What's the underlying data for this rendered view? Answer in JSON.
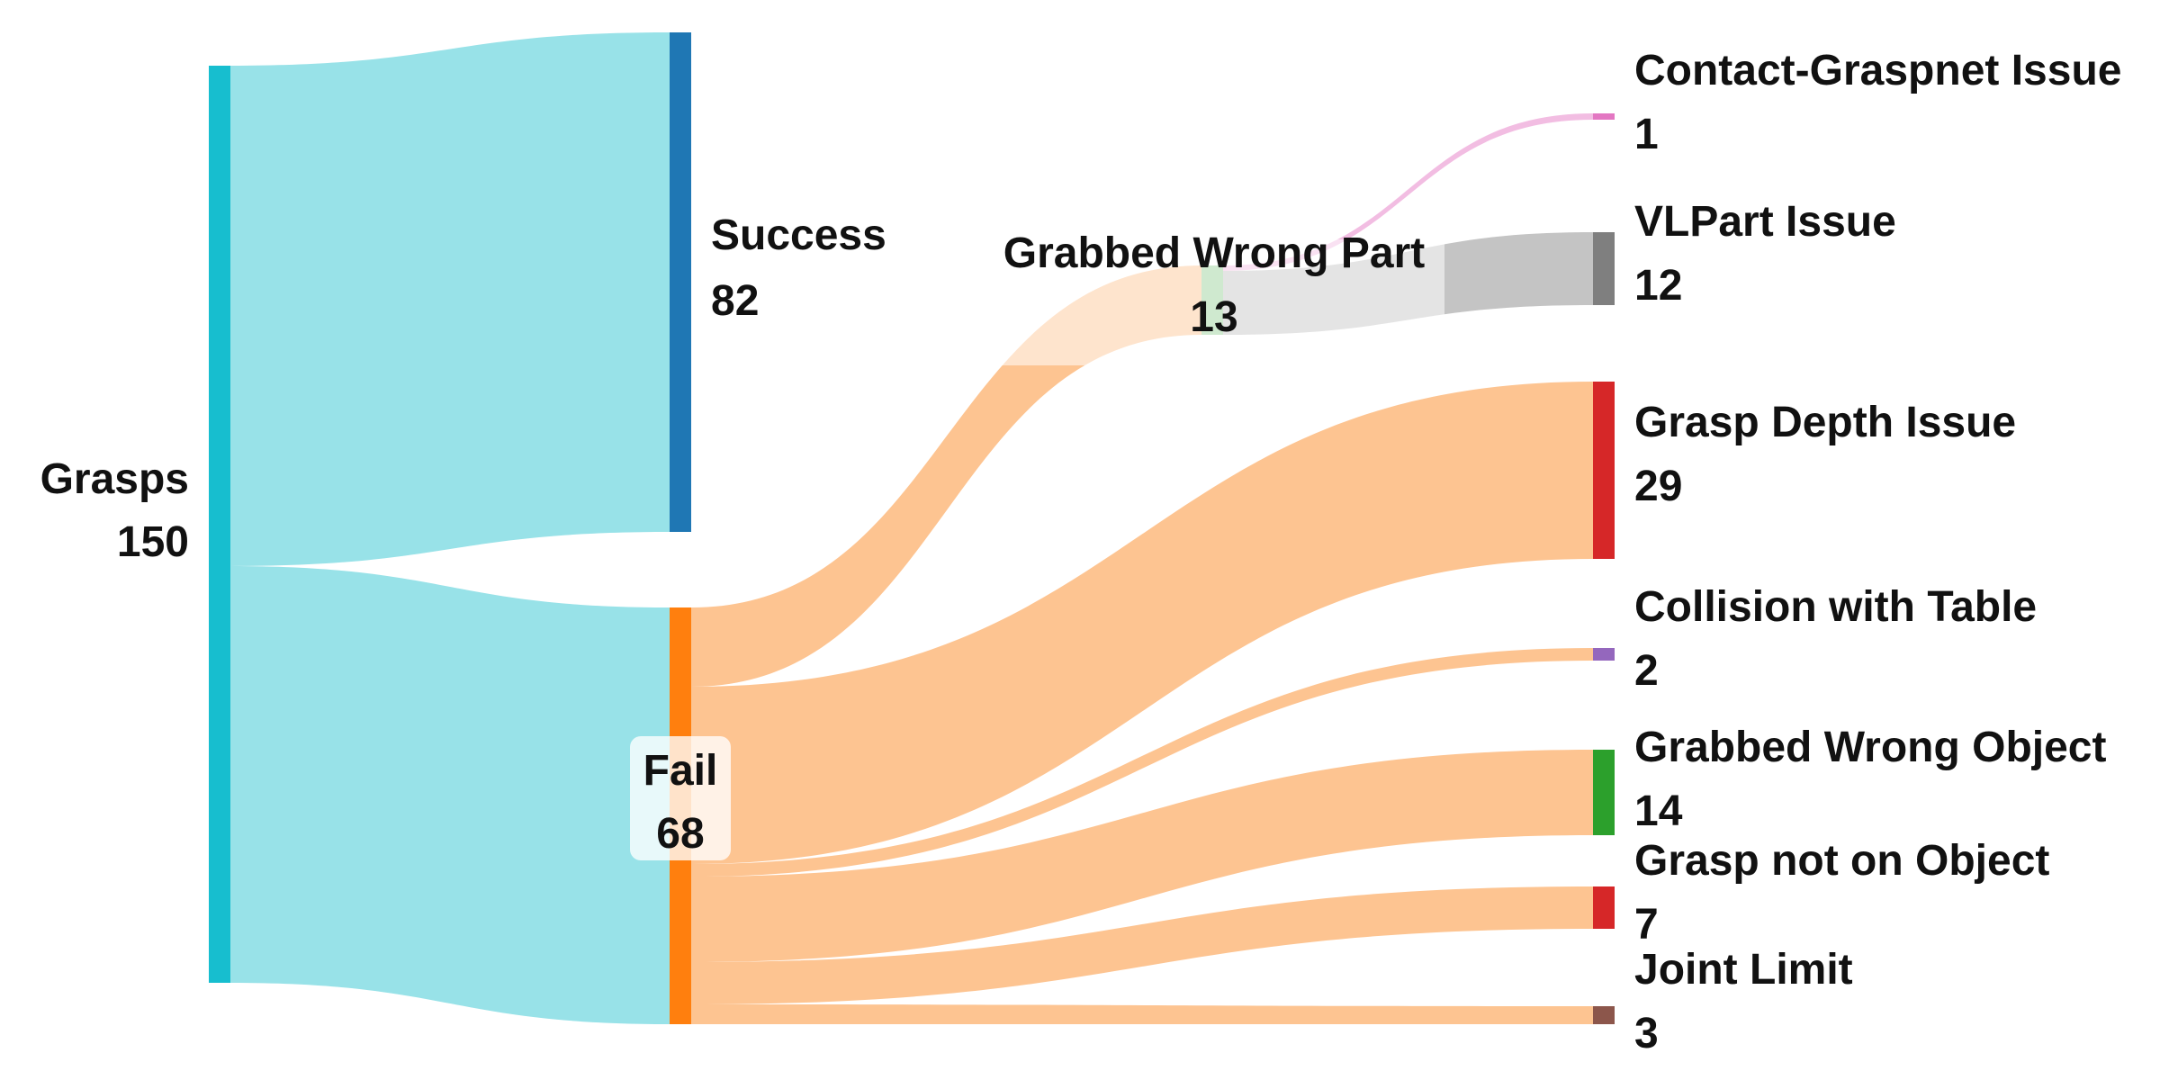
{
  "diagram": {
    "type": "sankey",
    "nodes": [
      {
        "id": "grasps",
        "name": "Grasps",
        "value": "150",
        "color": "#17becf"
      },
      {
        "id": "success",
        "name": "Success",
        "value": "82",
        "color": "#1f77b4"
      },
      {
        "id": "fail",
        "name": "Fail",
        "value": "68",
        "color": "#ff7f0e"
      },
      {
        "id": "wrong-part",
        "name": "Grabbed Wrong Part",
        "value": "13",
        "color": "#cfe9cf"
      },
      {
        "id": "contact-graspnet",
        "name": "Contact-Graspnet Issue",
        "value": "1",
        "color": "#e377c2"
      },
      {
        "id": "vlpart",
        "name": "VLPart Issue",
        "value": "12",
        "color": "#7f7f7f"
      },
      {
        "id": "grasp-depth",
        "name": "Grasp Depth Issue",
        "value": "29",
        "color": "#d62728"
      },
      {
        "id": "collision-table",
        "name": "Collision with Table",
        "value": "2",
        "color": "#9467bd"
      },
      {
        "id": "wrong-object",
        "name": "Grabbed Wrong Object",
        "value": "14",
        "color": "#2ca02c"
      },
      {
        "id": "not-on-object",
        "name": "Grasp not on Object",
        "value": "7",
        "color": "#d62728"
      },
      {
        "id": "joint-limit",
        "name": "Joint Limit",
        "value": "3",
        "color": "#8c564b"
      }
    ],
    "links": [
      {
        "source": "grasps",
        "target": "success",
        "value": 82,
        "color": "#98e2e8"
      },
      {
        "source": "grasps",
        "target": "fail",
        "value": 68,
        "color": "#98e2e8"
      },
      {
        "source": "fail",
        "target": "wrong-part",
        "value": 13,
        "color": "#fdc491"
      },
      {
        "source": "fail",
        "target": "grasp-depth",
        "value": 29,
        "color": "#fdc491"
      },
      {
        "source": "fail",
        "target": "collision-table",
        "value": 2,
        "color": "#fdc491"
      },
      {
        "source": "fail",
        "target": "wrong-object",
        "value": 14,
        "color": "#fdc491"
      },
      {
        "source": "fail",
        "target": "not-on-object",
        "value": 7,
        "color": "#fdc491"
      },
      {
        "source": "fail",
        "target": "joint-limit",
        "value": 3,
        "color": "#fdc491"
      },
      {
        "source": "wrong-part",
        "target": "contact-graspnet",
        "value": 1,
        "color": "#f2bde2"
      },
      {
        "source": "wrong-part",
        "target": "vlpart",
        "value": 12,
        "color": "#c4c4c4"
      }
    ]
  }
}
